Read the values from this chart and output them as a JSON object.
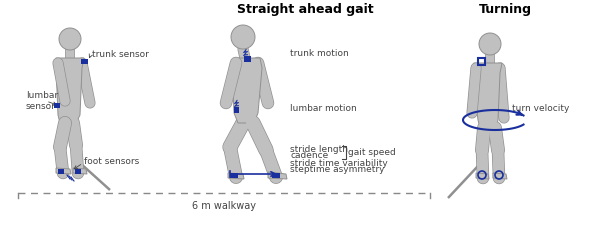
{
  "title_center": "Straight ahead gait",
  "title_right": "Turning",
  "bg_color": "#ffffff",
  "body_color": "#c0c0c0",
  "body_edge": "#909090",
  "sensor_color": "#1a2f9e",
  "arrow_color": "#1a2f9e",
  "text_color": "#444444",
  "dashed_color": "#888888",
  "labels_left": {
    "trunk_sensor": "trunk sensor",
    "lumbar_sensor": "lumbar\nsensor",
    "foot_sensors": "foot sensors"
  },
  "labels_center": {
    "trunk_motion": "trunk motion",
    "lumbar_motion": "lumbar motion",
    "stride_length": "stride length",
    "cadence": "cadence",
    "stride_time": "stride time variability",
    "steptime": "steptime asymmetry",
    "gait_speed": "gait speed"
  },
  "labels_right": {
    "turn_velocity": "turn velocity"
  },
  "walkway_label": "6 m walkway",
  "title_fontsize": 9,
  "label_fontsize": 6.5,
  "walkway_fontsize": 7
}
